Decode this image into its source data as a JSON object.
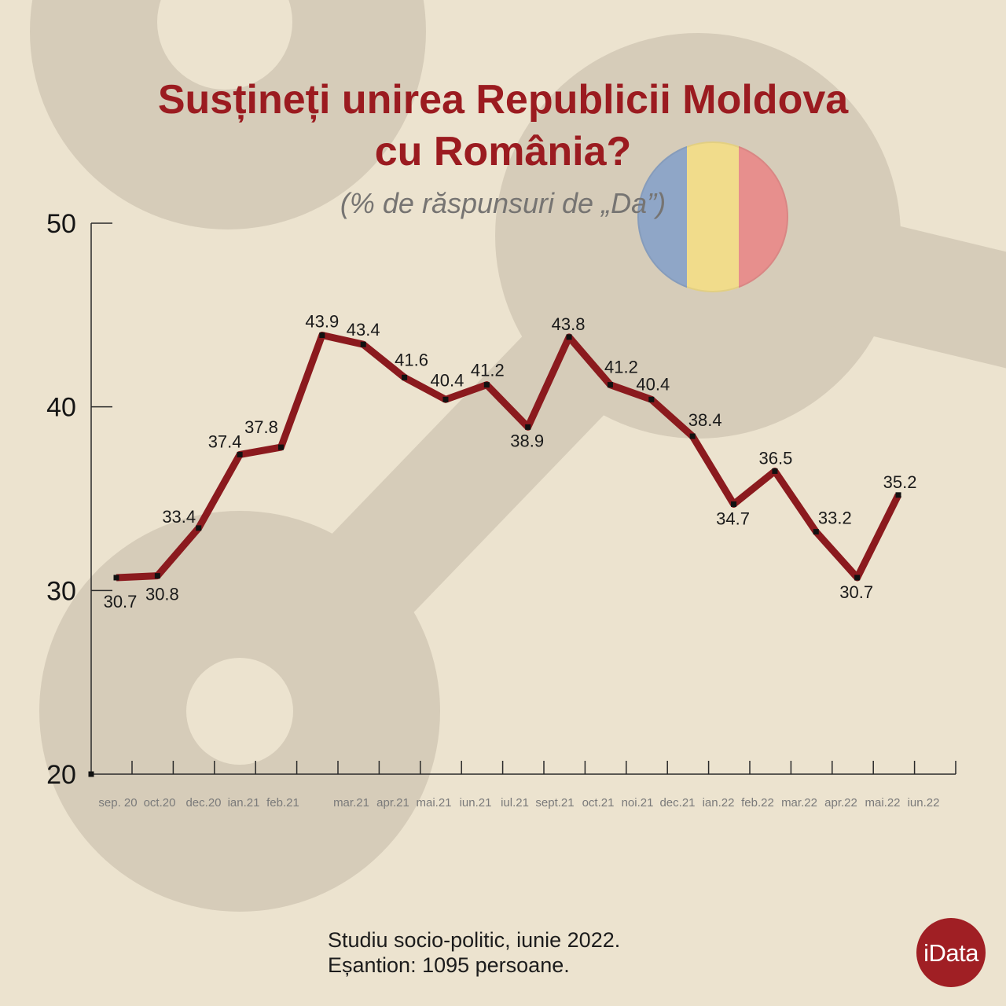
{
  "chart_data": {
    "type": "line",
    "title": [
      "Susțineți unirea Republicii Moldova",
      "cu România?"
    ],
    "subtitle": "(% de răspunsuri de „Da”)",
    "xlabel": "",
    "ylabel": "",
    "categories": [
      "sep. 20",
      "oct.20",
      "dec.20",
      "ian.21",
      "feb.21",
      "mar.21",
      "apr.21",
      "mai.21",
      "iun.21",
      "iul.21",
      "sept.21",
      "oct.21",
      "noi.21",
      "dec.21",
      "ian.22",
      "feb.22",
      "mar.22",
      "apr.22",
      "mai.22",
      "iun.22"
    ],
    "values": [
      30.7,
      30.8,
      33.4,
      37.4,
      37.8,
      43.9,
      43.4,
      41.6,
      40.4,
      41.2,
      38.9,
      43.8,
      41.2,
      40.4,
      38.4,
      34.7,
      36.5,
      33.2,
      30.7,
      35.2
    ],
    "ylim": [
      20,
      50
    ],
    "yticks": [
      20,
      30,
      40,
      50
    ],
    "grid": false,
    "data_labels": true
  },
  "footer": {
    "line1": "Studiu socio-politic, iunie 2022.",
    "line2": "Eșantion: 1095 persoane."
  },
  "logo": {
    "text": "iData"
  },
  "flag": {
    "icon": "romania-flag",
    "colors": [
      "#8fa6c7",
      "#f1dc8b",
      "#e78f8d"
    ]
  },
  "colors": {
    "background": "#ece3cf",
    "decoration": "#d6ccb9",
    "title": "#9b1b20",
    "line": "#8b1a1e",
    "markers": "#111111",
    "logo": "#a01f24"
  }
}
